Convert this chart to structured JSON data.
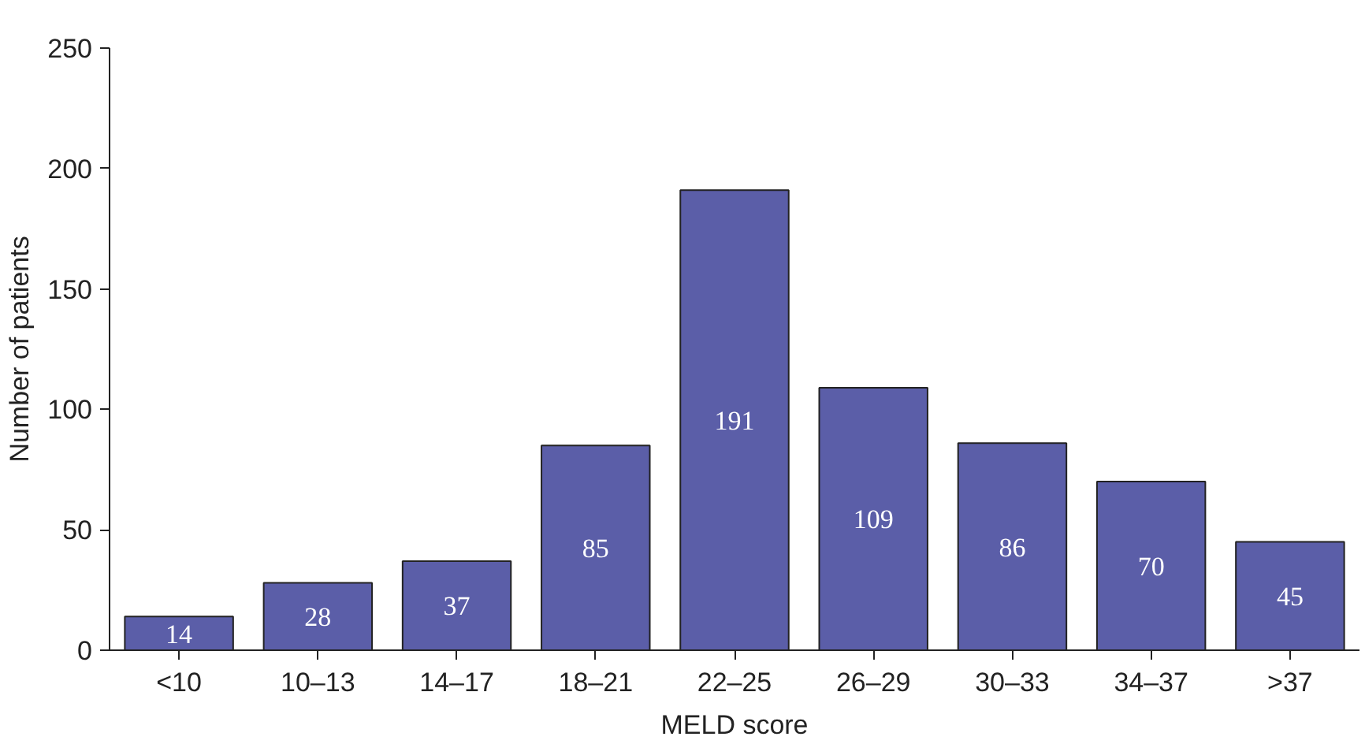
{
  "chart_data": {
    "type": "bar",
    "xlabel": "MELD score",
    "ylabel": "Number of patients",
    "categories": [
      "<10",
      "10–13",
      "14–17",
      "18–21",
      "22–25",
      "26–29",
      "30–33",
      "34–37",
      ">37"
    ],
    "values": [
      14,
      28,
      37,
      85,
      191,
      109,
      86,
      70,
      45
    ],
    "color": "#5b5ea8",
    "ylim": [
      0,
      250
    ],
    "yticks": [
      0,
      50,
      100,
      150,
      200,
      250
    ],
    "grid": false,
    "data_labels": true
  }
}
